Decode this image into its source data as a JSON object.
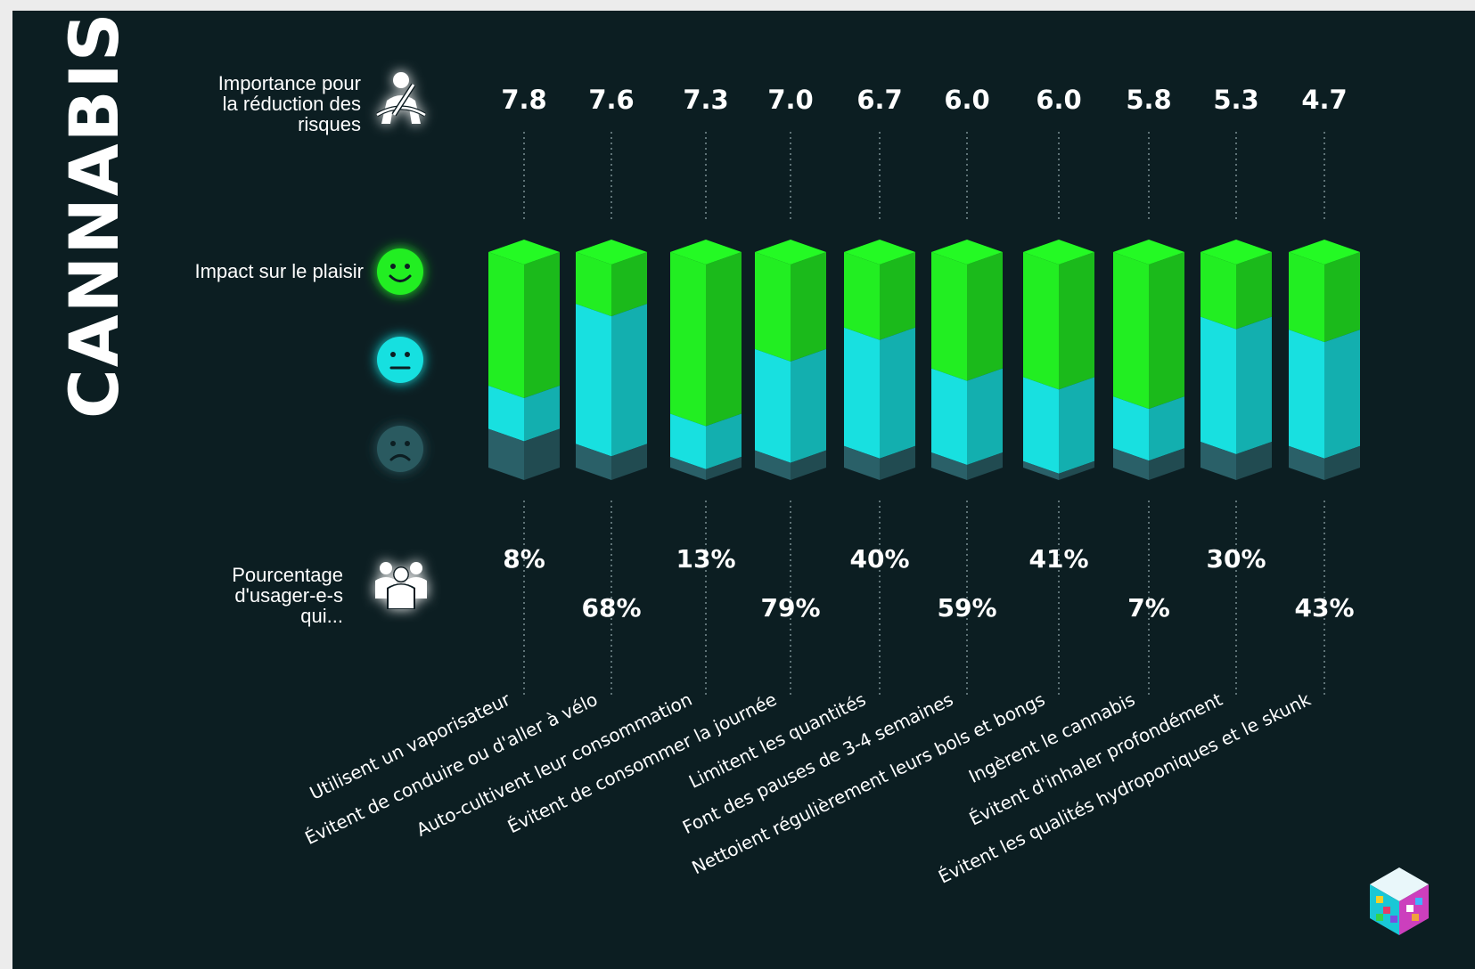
{
  "page_title": "CANNABIS",
  "row_labels": {
    "importance": "Importance pour\nla réduction des\nrisques",
    "impact": "Impact sur le plaisir",
    "percentage": "Pourcentage\nd'usager-e-s\nqui..."
  },
  "icons": {
    "importance": "seatbelt-icon",
    "impact_positive": "smiley-happy-icon",
    "impact_neutral": "smiley-neutral-icon",
    "impact_negative": "smiley-sad-icon",
    "percentage": "people-group-icon",
    "logo": "colored-cube-logo"
  },
  "colors": {
    "background": "#0c1e22",
    "positive": "#22ee22",
    "neutral": "#18e0e0",
    "negative": "#2a6068",
    "text": "#ffffff"
  },
  "chart_data": {
    "type": "bar",
    "stacked": true,
    "categories": [
      "Utilisent un vaporisateur",
      "Évitent de conduire ou d'aller à vélo",
      "Auto-cultivent leur consommation",
      "Évitent de consommer la journée",
      "Limitent les quantités",
      "Font des pauses de 3-4 semaines",
      "Nettoient régulièrement leurs bols et bongs",
      "Ingèrent le cannabis",
      "Évitent d'inhaler profondément",
      "Évitent les qualités hydroponiques et le skunk"
    ],
    "importance_scores": [
      7.8,
      7.6,
      7.3,
      7.0,
      6.7,
      6.0,
      6.0,
      5.8,
      5.3,
      4.7
    ],
    "importance_labels": [
      "7.8",
      "7.6",
      "7.3",
      "7.0",
      "6.7",
      "6.0",
      "6.0",
      "5.8",
      "5.3",
      "4.7"
    ],
    "user_percentages": [
      8,
      68,
      13,
      79,
      40,
      59,
      41,
      7,
      30,
      43
    ],
    "user_percentage_labels": [
      "8%",
      "68%",
      "13%",
      "79%",
      "40%",
      "59%",
      "41%",
      "7%",
      "30%",
      "43%"
    ],
    "series": [
      {
        "key": "positive",
        "values": [
          0.62,
          0.24,
          0.75,
          0.45,
          0.35,
          0.54,
          0.58,
          0.67,
          0.3,
          0.36
        ]
      },
      {
        "key": "neutral",
        "values": [
          0.2,
          0.65,
          0.2,
          0.47,
          0.55,
          0.39,
          0.39,
          0.24,
          0.58,
          0.54
        ]
      },
      {
        "key": "negative",
        "values": [
          0.18,
          0.11,
          0.05,
          0.08,
          0.1,
          0.07,
          0.03,
          0.09,
          0.12,
          0.1
        ]
      }
    ],
    "ylim": [
      0,
      1
    ]
  }
}
